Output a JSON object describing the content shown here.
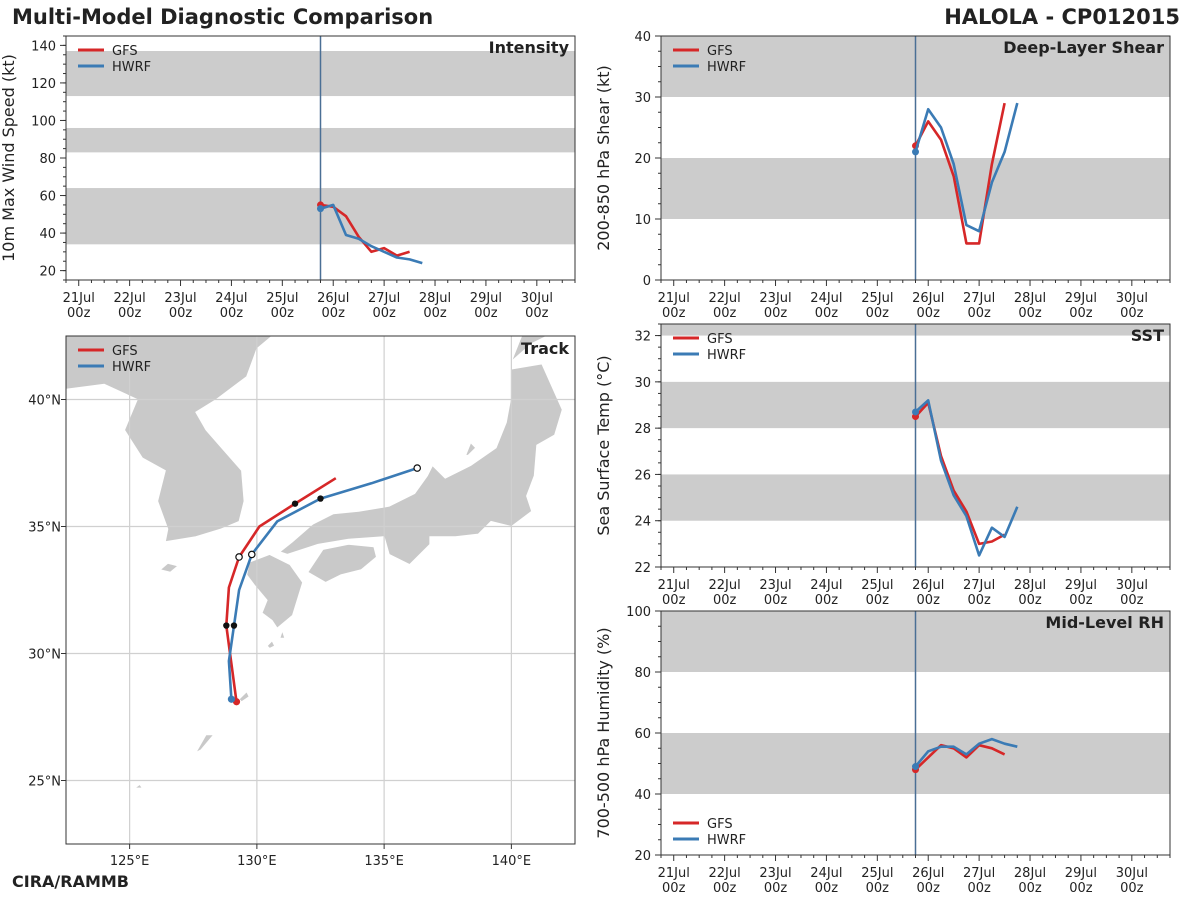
{
  "header": {
    "title": "Multi-Model Diagnostic Comparison",
    "storm": "HALOLA - CP012015",
    "credit": "CIRA/RAMMB"
  },
  "colors": {
    "gfs": "#d62728",
    "hwrf": "#3b7bb5",
    "band": "#cccccc",
    "vline": "#4a6f95"
  },
  "legend": [
    "GFS",
    "HWRF"
  ],
  "time_axis": {
    "range_hours": [
      -6,
      234
    ],
    "init_hour": 114,
    "ticks": [
      {
        "h": 0,
        "day": "21Jul",
        "hr": "00z"
      },
      {
        "h": 24,
        "day": "22Jul",
        "hr": "00z"
      },
      {
        "h": 48,
        "day": "23Jul",
        "hr": "00z"
      },
      {
        "h": 72,
        "day": "24Jul",
        "hr": "00z"
      },
      {
        "h": 96,
        "day": "25Jul",
        "hr": "00z"
      },
      {
        "h": 120,
        "day": "26Jul",
        "hr": "00z"
      },
      {
        "h": 144,
        "day": "27Jul",
        "hr": "00z"
      },
      {
        "h": 168,
        "day": "28Jul",
        "hr": "00z"
      },
      {
        "h": 192,
        "day": "29Jul",
        "hr": "00z"
      },
      {
        "h": 216,
        "day": "30Jul",
        "hr": "00z"
      }
    ]
  },
  "chart_data": [
    {
      "id": "intensity",
      "type": "line",
      "title": "Intensity",
      "ylabel": "10m Max Wind Speed (kt)",
      "ylim": [
        15,
        145
      ],
      "yticks": [
        20,
        40,
        60,
        80,
        100,
        120,
        140
      ],
      "bands": [
        [
          34,
          64
        ],
        [
          83,
          96
        ],
        [
          113,
          137
        ]
      ],
      "legend_pos": "top-left",
      "series": [
        {
          "name": "GFS",
          "x": [
            114,
            120,
            126,
            132,
            138,
            144,
            150,
            156
          ],
          "y": [
            55,
            54,
            49,
            38,
            30,
            32,
            28,
            30
          ],
          "marker_x": 114,
          "marker_y": 55
        },
        {
          "name": "HWRF",
          "x": [
            114,
            120,
            126,
            132,
            138,
            144,
            150,
            156,
            162
          ],
          "y": [
            53,
            55,
            39,
            37,
            33,
            30,
            27,
            26,
            24
          ],
          "marker_x": 114,
          "marker_y": 53
        }
      ]
    },
    {
      "id": "shear",
      "type": "line",
      "title": "Deep-Layer Shear",
      "ylabel": "200-850 hPa Shear (kt)",
      "ylim": [
        0,
        40
      ],
      "yticks": [
        0,
        10,
        20,
        30,
        40
      ],
      "bands": [
        [
          10,
          20
        ],
        [
          30,
          40
        ]
      ],
      "legend_pos": "top-left",
      "series": [
        {
          "name": "GFS",
          "x": [
            114,
            120,
            126,
            132,
            138,
            144,
            150,
            156
          ],
          "y": [
            22,
            26,
            23,
            17,
            6,
            6,
            19,
            29
          ],
          "marker_x": 114,
          "marker_y": 22
        },
        {
          "name": "HWRF",
          "x": [
            114,
            120,
            126,
            132,
            138,
            144,
            150,
            156,
            162
          ],
          "y": [
            21,
            28,
            25,
            19,
            9,
            8,
            16,
            21,
            29
          ],
          "marker_x": 114,
          "marker_y": 21
        }
      ]
    },
    {
      "id": "sst",
      "type": "line",
      "title": "SST",
      "ylabel": "Sea Surface Temp (°C)",
      "ylim": [
        22,
        32.5
      ],
      "yticks": [
        22,
        24,
        26,
        28,
        30,
        32
      ],
      "bands": [
        [
          24,
          26
        ],
        [
          28,
          30
        ],
        [
          32,
          34
        ]
      ],
      "legend_pos": "top-left",
      "series": [
        {
          "name": "GFS",
          "x": [
            114,
            120,
            126,
            132,
            138,
            144,
            150,
            156
          ],
          "y": [
            28.5,
            29.1,
            26.8,
            25.3,
            24.4,
            23.0,
            23.1,
            23.4
          ],
          "marker_x": 114,
          "marker_y": 28.5
        },
        {
          "name": "HWRF",
          "x": [
            114,
            120,
            126,
            132,
            138,
            144,
            150,
            156,
            162
          ],
          "y": [
            28.7,
            29.2,
            26.6,
            25.1,
            24.2,
            22.5,
            23.7,
            23.3,
            24.6
          ],
          "marker_x": 114,
          "marker_y": 28.7
        }
      ]
    },
    {
      "id": "rh",
      "type": "line",
      "title": "Mid-Level RH",
      "ylabel": "700-500 hPa Humidity (%)",
      "ylim": [
        20,
        100
      ],
      "yticks": [
        20,
        40,
        60,
        80,
        100
      ],
      "bands": [
        [
          40,
          60
        ],
        [
          80,
          100
        ]
      ],
      "legend_pos": "bottom-left",
      "series": [
        {
          "name": "GFS",
          "x": [
            114,
            120,
            126,
            132,
            138,
            144,
            150,
            156
          ],
          "y": [
            48,
            52,
            56,
            55,
            52,
            56,
            55,
            53
          ],
          "marker_x": 114,
          "marker_y": 48
        },
        {
          "name": "HWRF",
          "x": [
            114,
            120,
            126,
            132,
            138,
            144,
            150,
            156,
            162
          ],
          "y": [
            49,
            54,
            55.5,
            55.5,
            53,
            56.5,
            58,
            56.5,
            55.5
          ],
          "marker_x": 114,
          "marker_y": 49
        },
        {
          "name": "_",
          "x": [],
          "y": []
        }
      ]
    },
    {
      "id": "track",
      "type": "line",
      "title": "Track",
      "xlim": [
        122.5,
        142.5
      ],
      "ylim": [
        22.5,
        42.5
      ],
      "xticks": [
        {
          "v": 125,
          "t": "125°E"
        },
        {
          "v": 130,
          "t": "130°E"
        },
        {
          "v": 135,
          "t": "135°E"
        },
        {
          "v": 140,
          "t": "140°E"
        }
      ],
      "yticks": [
        {
          "v": 25,
          "t": "25°N"
        },
        {
          "v": 30,
          "t": "30°N"
        },
        {
          "v": 35,
          "t": "35°N"
        },
        {
          "v": 40,
          "t": "40°N"
        }
      ],
      "legend_pos": "top-left",
      "series": [
        {
          "name": "GFS",
          "lon": [
            129.2,
            129.0,
            128.8,
            128.9,
            129.3,
            130.1,
            131.5,
            133.1
          ],
          "lat": [
            28.1,
            29.6,
            31.1,
            32.6,
            33.8,
            35.0,
            35.9,
            36.9
          ],
          "markers": [
            {
              "lon": 129.2,
              "lat": 28.1,
              "kind": "start"
            },
            {
              "lon": 128.8,
              "lat": 31.1,
              "kind": "filled"
            },
            {
              "lon": 129.3,
              "lat": 33.8,
              "kind": "open"
            },
            {
              "lon": 131.5,
              "lat": 35.9,
              "kind": "filled"
            }
          ]
        },
        {
          "name": "HWRF",
          "lon": [
            129.0,
            128.9,
            129.1,
            129.3,
            129.8,
            130.8,
            132.5,
            134.5,
            136.3
          ],
          "lat": [
            28.2,
            29.7,
            31.1,
            32.5,
            33.9,
            35.2,
            36.1,
            36.7,
            37.3
          ],
          "markers": [
            {
              "lon": 129.0,
              "lat": 28.2,
              "kind": "start"
            },
            {
              "lon": 129.1,
              "lat": 31.1,
              "kind": "filled"
            },
            {
              "lon": 129.8,
              "lat": 33.9,
              "kind": "open"
            },
            {
              "lon": 132.5,
              "lat": 36.1,
              "kind": "filled"
            },
            {
              "lon": 136.3,
              "lat": 37.3,
              "kind": "open"
            }
          ]
        }
      ]
    }
  ]
}
